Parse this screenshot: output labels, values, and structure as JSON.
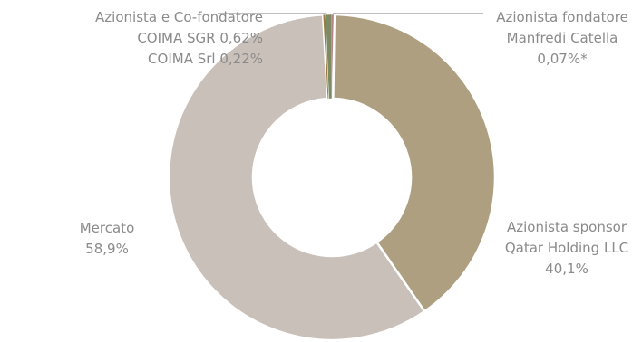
{
  "chart_data": {
    "type": "pie",
    "style": "donut",
    "start_angle_deg": 0,
    "direction": "clockwise",
    "slices": [
      {
        "name": "Azionista fondatore Manfredi Catella",
        "value": 0.07,
        "color": "#8b3a3a"
      },
      {
        "name": "Azionista sponsor Qatar Holding LLC",
        "value": 40.1,
        "color": "#ad9f80"
      },
      {
        "name": "Mercato",
        "value": 58.9,
        "color": "#c9c1b9"
      },
      {
        "name": "COIMA Srl",
        "value": 0.22,
        "color": "#9a7a3d"
      },
      {
        "name": "COIMA SGR",
        "value": 0.62,
        "color": "#7d8a63"
      }
    ],
    "leader_line_color": "#555555",
    "background": "#ffffff"
  },
  "labels": {
    "coima": {
      "line1": "Azionista e Co-fondatore",
      "line2": "COIMA SGR 0,62%",
      "line3": "COIMA Srl 0,22%"
    },
    "catella": {
      "line1": "Azionista fondatore",
      "line2": "Manfredi Catella",
      "line3": "0,07%*"
    },
    "qatar": {
      "line1": "Azionista sponsor",
      "line2": "Qatar Holding LLC",
      "line3": "40,1%"
    },
    "mercato": {
      "line1": "Mercato",
      "line2": "58,9%"
    }
  }
}
